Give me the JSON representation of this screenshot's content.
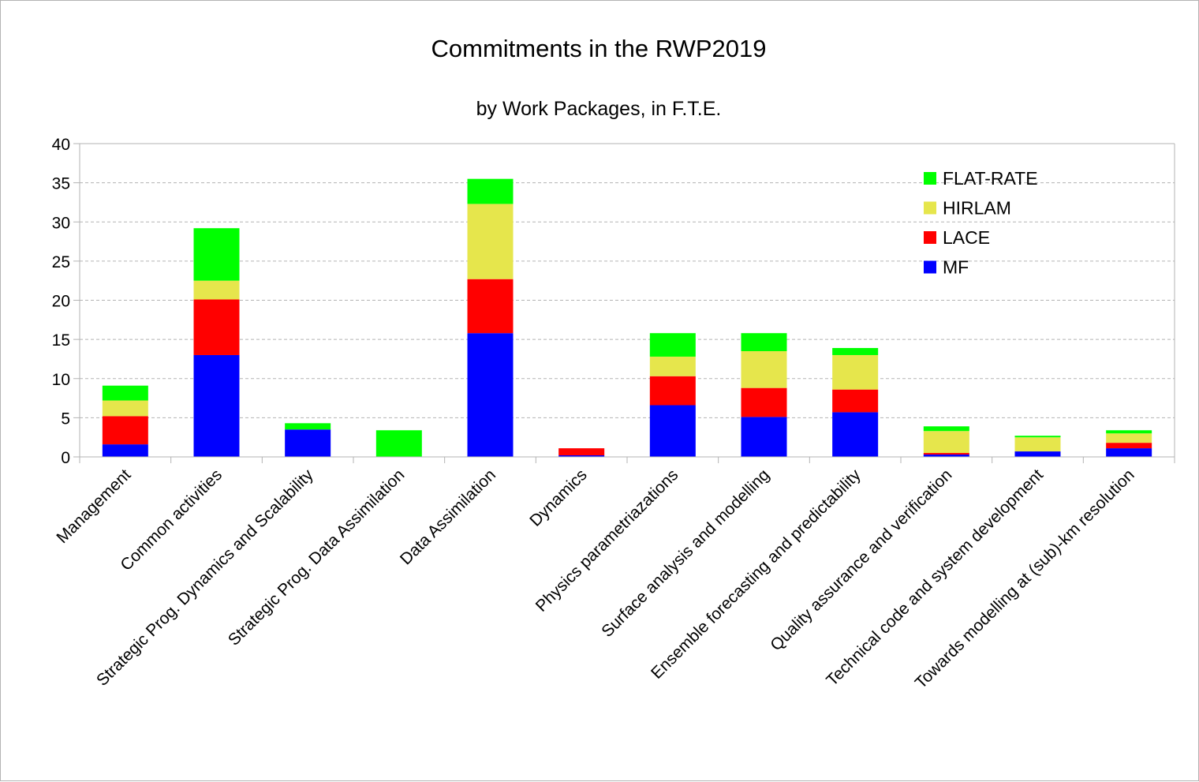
{
  "chart_data": {
    "type": "bar",
    "stacked": true,
    "title": "Commitments in the RWP2019",
    "subtitle": "by Work Packages, in F.T.E.",
    "xlabel": "",
    "ylabel": "",
    "ylim": [
      0,
      40
    ],
    "yticks": [
      0,
      5,
      10,
      15,
      20,
      25,
      30,
      35,
      40
    ],
    "grid": true,
    "legend_position": "top-right",
    "categories": [
      "Management",
      "Common activities",
      "Strategic Prog. Dynamics and Scalability",
      "Strategic Prog. Data Assimilation",
      "Data Assimilation",
      "Dynamics",
      "Physics parametriazations",
      "Surface analysis and modelling",
      "Ensemble forecasting and predictability",
      "Quality assurance and verification",
      "Technical code and system development",
      "Towards modelling at (sub)-km resolution"
    ],
    "series": [
      {
        "name": "MF",
        "color": "#0000ff",
        "values": [
          1.6,
          13.0,
          3.5,
          0.0,
          15.8,
          0.2,
          6.6,
          5.1,
          5.7,
          0.3,
          0.7,
          1.1
        ]
      },
      {
        "name": "LACE",
        "color": "#ff0000",
        "values": [
          3.6,
          7.1,
          0.0,
          0.0,
          6.9,
          0.9,
          3.7,
          3.7,
          2.9,
          0.2,
          0.0,
          0.7
        ]
      },
      {
        "name": "HIRLAM",
        "color": "#e6e64c",
        "values": [
          2.0,
          2.4,
          0.0,
          0.0,
          9.6,
          0.0,
          2.5,
          4.7,
          4.4,
          2.8,
          1.8,
          1.2
        ]
      },
      {
        "name": "FLAT-RATE",
        "color": "#00ff00",
        "values": [
          1.9,
          6.7,
          0.8,
          3.4,
          3.2,
          0.0,
          3.0,
          2.3,
          0.9,
          0.6,
          0.2,
          0.4
        ]
      }
    ]
  }
}
